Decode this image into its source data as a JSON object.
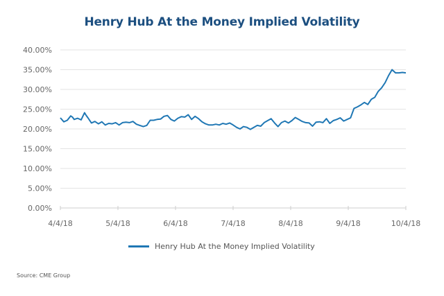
{
  "chart_data": {
    "type": "line",
    "title": "Henry Hub At the Money Implied Volatility",
    "xlabel": "",
    "ylabel": "",
    "ylim": [
      0,
      40
    ],
    "yticks": [
      "0.00%",
      "5.00%",
      "10.00%",
      "15.00%",
      "20.00%",
      "25.00%",
      "30.00%",
      "35.00%",
      "40.00%"
    ],
    "xticks": [
      "4/4/18",
      "5/4/18",
      "6/4/18",
      "7/4/18",
      "8/4/18",
      "9/4/18",
      "10/4/18"
    ],
    "grid": true,
    "legend_position": "bottom",
    "series": [
      {
        "name": "Henry Hub At the Money Implied Volatility",
        "color": "#1f77b4",
        "x_fraction": [
          0.0,
          0.01,
          0.02,
          0.03,
          0.035,
          0.04,
          0.05,
          0.06,
          0.07,
          0.075,
          0.08,
          0.09,
          0.1,
          0.11,
          0.12,
          0.13,
          0.14,
          0.15,
          0.16,
          0.17,
          0.18,
          0.19,
          0.2,
          0.21,
          0.22,
          0.23,
          0.24,
          0.25,
          0.26,
          0.27,
          0.28,
          0.29,
          0.3,
          0.31,
          0.32,
          0.33,
          0.34,
          0.35,
          0.36,
          0.37,
          0.38,
          0.39,
          0.4,
          0.41,
          0.42,
          0.43,
          0.44,
          0.45,
          0.46,
          0.47,
          0.48,
          0.49,
          0.5,
          0.51,
          0.52,
          0.53,
          0.54,
          0.55,
          0.56,
          0.57,
          0.58,
          0.59,
          0.6,
          0.61,
          0.62,
          0.63,
          0.64,
          0.65,
          0.66,
          0.67,
          0.68,
          0.69,
          0.7,
          0.71,
          0.72,
          0.73,
          0.74,
          0.75,
          0.76,
          0.77,
          0.78,
          0.79,
          0.8,
          0.81,
          0.82,
          0.83,
          0.84,
          0.85,
          0.86,
          0.87,
          0.88,
          0.89,
          0.9,
          0.91,
          0.92,
          0.93,
          0.94,
          0.95,
          0.96,
          0.97,
          0.98,
          0.99,
          1.0
        ],
        "values": [
          22.8,
          21.8,
          22.2,
          23.3,
          23.0,
          22.4,
          22.7,
          22.3,
          24.1,
          23.4,
          22.8,
          21.5,
          21.9,
          21.3,
          21.8,
          21.0,
          21.4,
          21.3,
          21.6,
          21.0,
          21.6,
          21.7,
          21.6,
          21.9,
          21.2,
          20.9,
          20.6,
          20.9,
          22.2,
          22.2,
          22.4,
          22.5,
          23.2,
          23.4,
          22.4,
          22.0,
          22.7,
          23.1,
          23.0,
          23.6,
          22.4,
          23.2,
          22.6,
          21.8,
          21.3,
          21.0,
          21.0,
          21.2,
          21.0,
          21.4,
          21.2,
          21.5,
          21.0,
          20.4,
          20.0,
          20.6,
          20.4,
          19.9,
          20.4,
          20.9,
          20.7,
          21.6,
          22.1,
          22.6,
          21.5,
          20.6,
          21.6,
          22.0,
          21.5,
          22.1,
          22.9,
          22.4,
          21.9,
          21.6,
          21.5,
          20.7,
          21.7,
          21.8,
          21.6,
          22.6,
          21.4,
          22.1,
          22.4,
          22.8,
          22.0,
          22.4,
          22.8,
          25.2,
          25.6,
          26.1,
          26.7,
          26.2,
          27.5,
          28.0,
          29.5,
          30.4,
          31.7,
          33.5,
          35.0,
          34.2,
          34.2,
          34.3,
          34.2
        ]
      }
    ]
  },
  "legend": {
    "label": "Henry Hub At the Money Implied Volatility"
  },
  "source": "Source: CME Group"
}
